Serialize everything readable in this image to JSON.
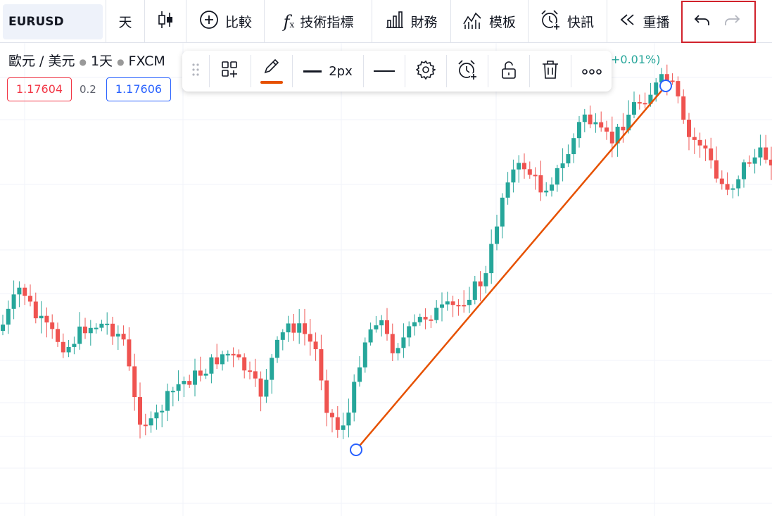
{
  "toolbar": {
    "symbol": "EURUSD",
    "interval": "天",
    "compare_label": "比較",
    "indicators_label": "技術指標",
    "financials_label": "財務",
    "templates_label": "模板",
    "alerts_label": "快訊",
    "replay_label": "重播"
  },
  "legend": {
    "name": "歐元 / 美元",
    "interval": "1天",
    "source": "FXCM",
    "change": "+0.01%)",
    "sell_price": "1.17604",
    "spread": "0.2",
    "buy_price": "1.17606"
  },
  "drawing_toolbar": {
    "width_label": "2px",
    "line_color": "#e65100"
  },
  "colors": {
    "up": "#26a69a",
    "down": "#ef5350",
    "trendline": "#e65100",
    "highlight": "#d1222c"
  }
}
